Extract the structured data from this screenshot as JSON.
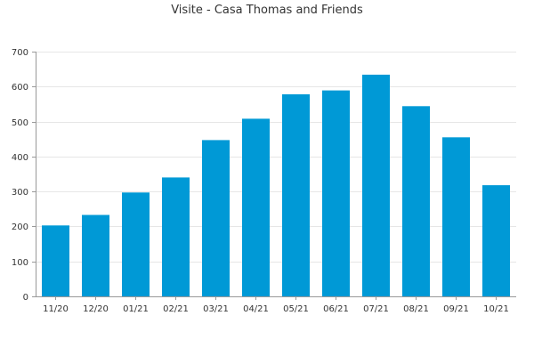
{
  "chart_data": {
    "type": "bar",
    "title": "Visite - Casa Thomas and Friends",
    "xlabel": "",
    "ylabel": "",
    "categories": [
      "11/20",
      "12/20",
      "01/21",
      "02/21",
      "03/21",
      "04/21",
      "05/21",
      "06/21",
      "07/21",
      "08/21",
      "09/21",
      "10/21"
    ],
    "series": [
      {
        "values": [
          203,
          233,
          297,
          340,
          447,
          508,
          578,
          589,
          634,
          544,
          455,
          318
        ]
      }
    ],
    "ylim": [
      0,
      700
    ],
    "yticks": [
      0,
      100,
      200,
      300,
      400,
      500,
      600,
      700
    ],
    "grid": true,
    "colors": {
      "bar": "#0099d6",
      "grid": "#e6e6e6",
      "axis": "#999999",
      "text": "#333333"
    }
  }
}
